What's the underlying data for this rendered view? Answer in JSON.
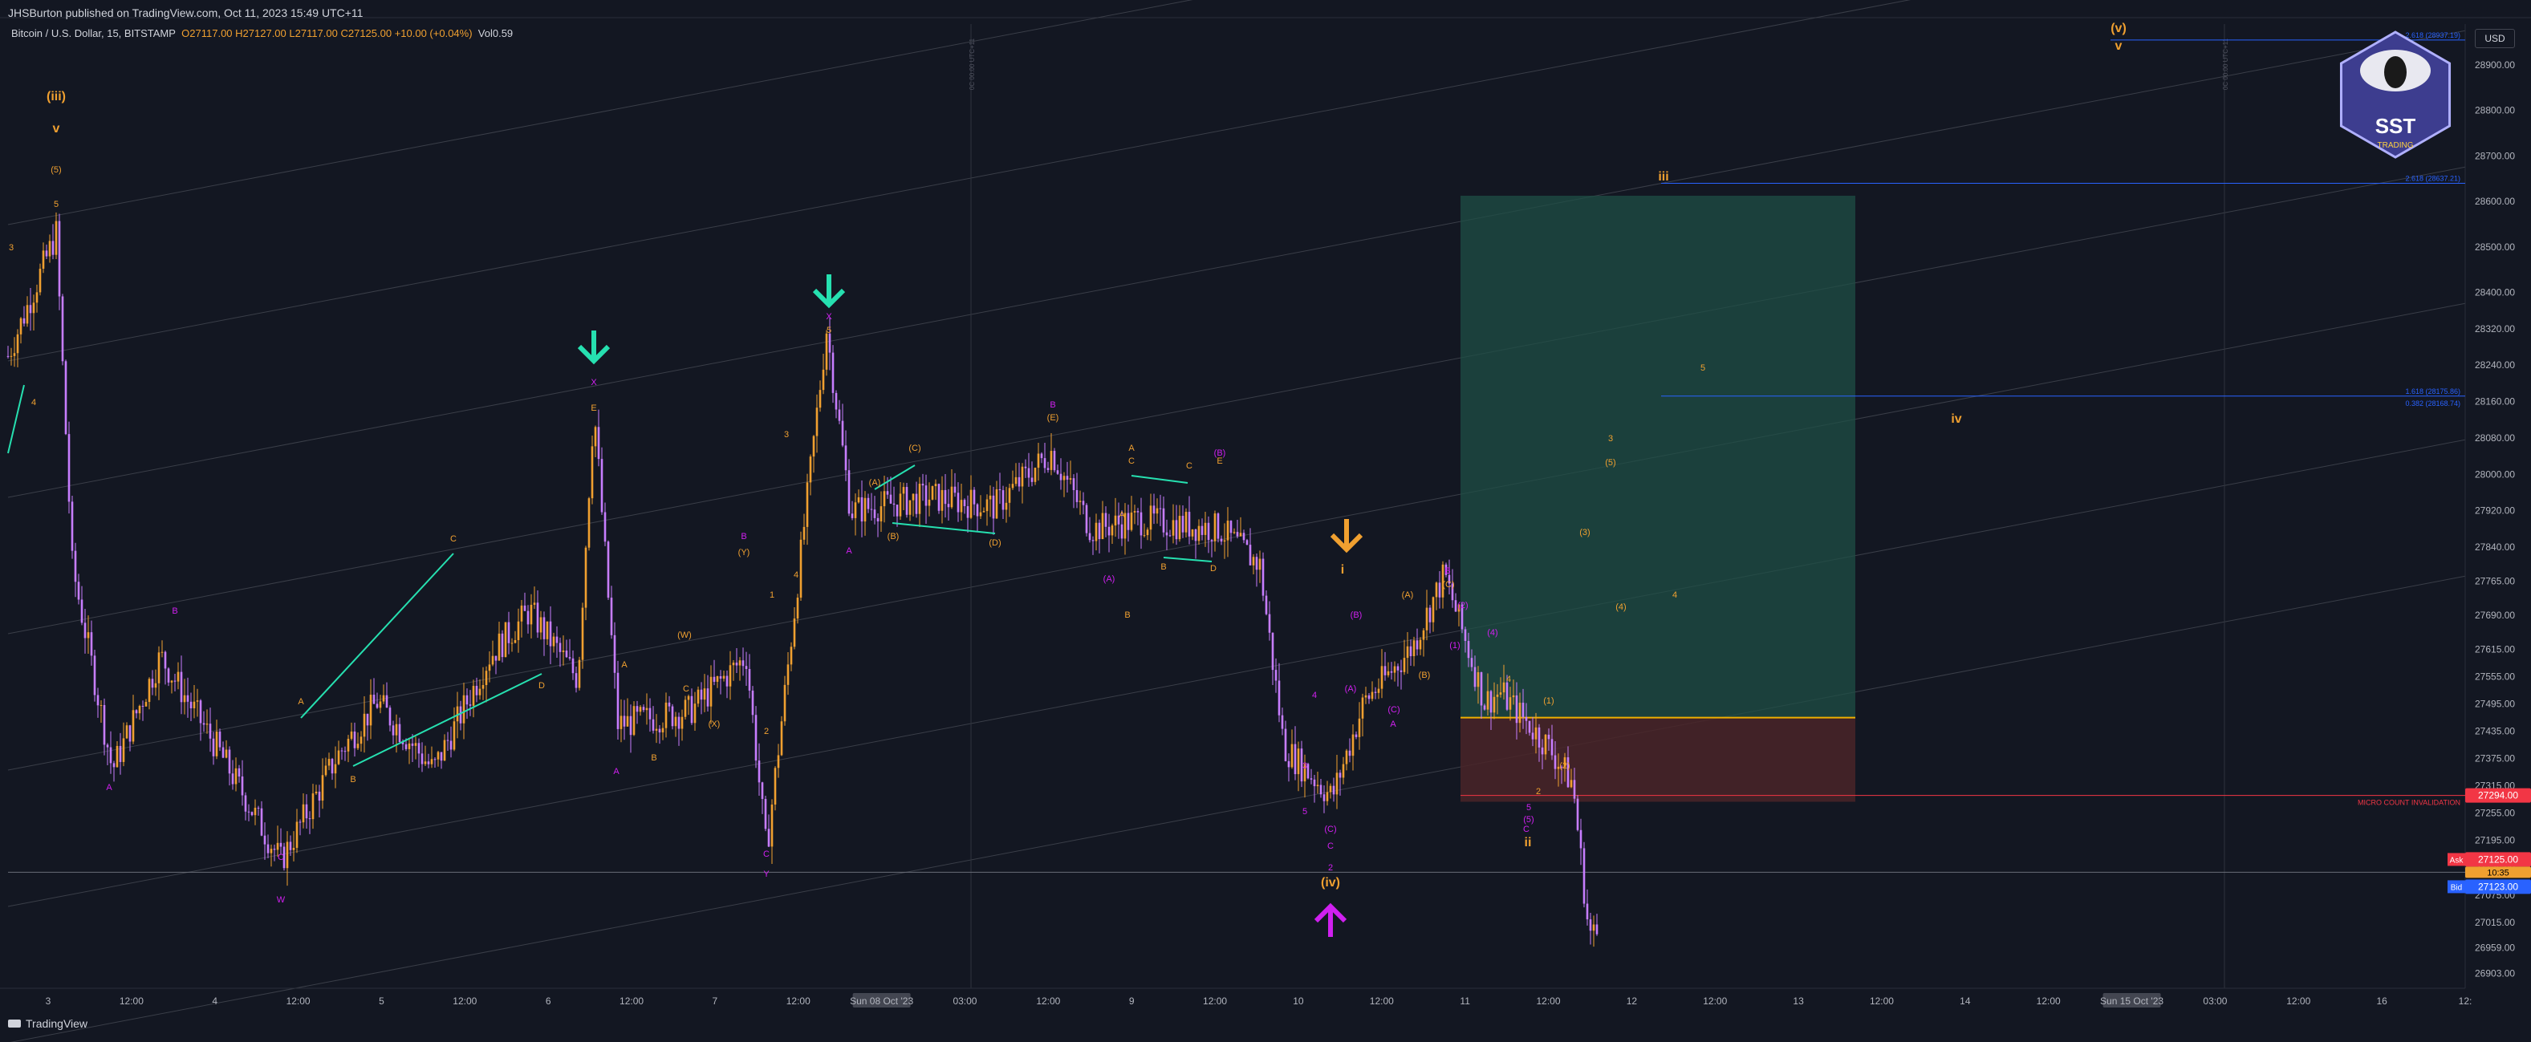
{
  "header": {
    "published": "JHSBurton published on TradingView.com, Oct 11, 2023 15:49 UTC+11",
    "symbol": "Bitcoin / U.S. Dollar, 15, BITSTAMP",
    "ohlc": "O27117.00 H27127.00 L27117.00 C27125.00 +10.00 (+0.04%)",
    "volume": "Vol0.59"
  },
  "footer": {
    "brand": "TradingView"
  },
  "currency": "USD",
  "colors": {
    "background": "#131722",
    "candle": "#c77dff",
    "orange": "#f0a030",
    "teal": "#26e0b0",
    "magenta": "#d020f0",
    "blue": "#2962ff",
    "red": "#f23645",
    "yellow_line": "#f0b000",
    "take_profit_zone": "#1f4f46",
    "stop_zone": "#4a2528"
  },
  "chart_data": {
    "type": "candlestick",
    "symbol": "BTC/USD",
    "timeframe": "15",
    "y_axis": {
      "ticks": [
        "28900.00",
        "28800.00",
        "28700.00",
        "28600.00",
        "28500.00",
        "28400.00",
        "28320.00",
        "28240.00",
        "28160.00",
        "28080.00",
        "28000.00",
        "27920.00",
        "27840.00",
        "27765.00",
        "27690.00",
        "27615.00",
        "27555.00",
        "27495.00",
        "27435.00",
        "27375.00",
        "27315.00",
        "27255.00",
        "27195.00",
        "27135.00",
        "27075.00",
        "27015.00",
        "26959.00",
        "26903.00"
      ]
    },
    "x_axis": {
      "ticks": [
        "3",
        "12:00",
        "4",
        "12:00",
        "5",
        "12:00",
        "6",
        "12:00",
        "7",
        "12:00",
        "Sun 08 Oct '23",
        "03:00",
        "12:00",
        "9",
        "12:00",
        "10",
        "12:00",
        "11",
        "12:00",
        "12",
        "12:00",
        "13",
        "12:00",
        "14",
        "12:00",
        "Sun 15 Oct '23",
        "03:00",
        "12:00",
        "16",
        "12:"
      ]
    },
    "price_labels": {
      "invalidation_value": "27294.00",
      "ask_value": "27125.00",
      "ask_label": "Ask",
      "timer": "10:35",
      "bid_value": "27123.00",
      "bid_label": "Bid"
    },
    "levels": {
      "invalidation_text": "MICRO COUNT INVALIDATION",
      "fib_top": "2.618 (28937.19)",
      "fib_mid": "2.618 (28637.21)",
      "fib_a": "1.618 (28175.86)",
      "fib_b": "0.382 (28168.74)"
    },
    "vertical_marker_labels": [
      "0C 00:00 UTC+11",
      "0C 00:00 UTC+11"
    ],
    "wave_labels": [
      {
        "text": "(iii)",
        "color": "orange"
      },
      {
        "text": "v",
        "color": "orange"
      },
      {
        "text": "(5)",
        "color": "orange"
      },
      {
        "text": "5",
        "color": "orange"
      },
      {
        "text": "3",
        "color": "orange"
      },
      {
        "text": "4",
        "color": "orange"
      },
      {
        "text": "A",
        "color": "magenta"
      },
      {
        "text": "B",
        "color": "magenta"
      },
      {
        "text": "A",
        "color": "orange"
      },
      {
        "text": "B",
        "color": "orange"
      },
      {
        "text": "C",
        "color": "orange"
      },
      {
        "text": "C",
        "color": "magenta"
      },
      {
        "text": "D",
        "color": "orange"
      },
      {
        "text": "W",
        "color": "magenta"
      },
      {
        "text": "X",
        "color": "magenta"
      },
      {
        "text": "E",
        "color": "orange"
      },
      {
        "text": "A",
        "color": "magenta"
      },
      {
        "text": "A",
        "color": "orange"
      },
      {
        "text": "B",
        "color": "orange"
      },
      {
        "text": "(W)",
        "color": "orange"
      },
      {
        "text": "C",
        "color": "orange"
      },
      {
        "text": "(X)",
        "color": "orange"
      },
      {
        "text": "B",
        "color": "magenta"
      },
      {
        "text": "(Y)",
        "color": "orange"
      },
      {
        "text": "C",
        "color": "magenta"
      },
      {
        "text": "Y",
        "color": "magenta"
      },
      {
        "text": "1",
        "color": "orange"
      },
      {
        "text": "2",
        "color": "orange"
      },
      {
        "text": "3",
        "color": "orange"
      },
      {
        "text": "4",
        "color": "orange"
      },
      {
        "text": "X",
        "color": "magenta"
      },
      {
        "text": "5",
        "color": "orange"
      },
      {
        "text": "A",
        "color": "magenta"
      },
      {
        "text": "(A)",
        "color": "orange"
      },
      {
        "text": "(B)",
        "color": "orange"
      },
      {
        "text": "(C)",
        "color": "orange"
      },
      {
        "text": "(D)",
        "color": "orange"
      },
      {
        "text": "B",
        "color": "magenta"
      },
      {
        "text": "(E)",
        "color": "orange"
      },
      {
        "text": "A",
        "color": "orange"
      },
      {
        "text": "C",
        "color": "orange"
      },
      {
        "text": "A",
        "color": "orange"
      },
      {
        "text": "B",
        "color": "orange"
      },
      {
        "text": "C",
        "color": "orange"
      },
      {
        "text": "D",
        "color": "orange"
      },
      {
        "text": "E",
        "color": "orange"
      },
      {
        "text": "(B)",
        "color": "magenta"
      },
      {
        "text": "(A)",
        "color": "magenta"
      },
      {
        "text": "B",
        "color": "orange"
      },
      {
        "text": "i",
        "color": "orange"
      },
      {
        "text": "(B)",
        "color": "magenta"
      },
      {
        "text": "(A)",
        "color": "magenta"
      },
      {
        "text": "(C)",
        "color": "magenta"
      },
      {
        "text": "A",
        "color": "magenta"
      },
      {
        "text": "4",
        "color": "magenta"
      },
      {
        "text": "3",
        "color": "magenta"
      },
      {
        "text": "5",
        "color": "magenta"
      },
      {
        "text": "(C)",
        "color": "magenta"
      },
      {
        "text": "C",
        "color": "magenta"
      },
      {
        "text": "2",
        "color": "magenta"
      },
      {
        "text": "(iv)",
        "color": "orange"
      },
      {
        "text": "(A)",
        "color": "orange"
      },
      {
        "text": "(B)",
        "color": "orange"
      },
      {
        "text": "(C)",
        "color": "orange"
      },
      {
        "text": "B",
        "color": "magenta"
      },
      {
        "text": "(1)",
        "color": "magenta"
      },
      {
        "text": "(2)",
        "color": "magenta"
      },
      {
        "text": "(4)",
        "color": "magenta"
      },
      {
        "text": "(1)",
        "color": "orange"
      },
      {
        "text": "(2)",
        "color": "orange"
      },
      {
        "text": "2",
        "color": "orange"
      },
      {
        "text": "4",
        "color": "orange"
      },
      {
        "text": "5",
        "color": "magenta"
      },
      {
        "text": "(5)",
        "color": "magenta"
      },
      {
        "text": "C",
        "color": "magenta"
      },
      {
        "text": "ii",
        "color": "orange"
      },
      {
        "text": "(3)",
        "color": "orange"
      },
      {
        "text": "(4)",
        "color": "orange"
      },
      {
        "text": "4",
        "color": "orange"
      },
      {
        "text": "(5)",
        "color": "orange"
      },
      {
        "text": "3",
        "color": "orange"
      },
      {
        "text": "5",
        "color": "orange"
      },
      {
        "text": "iii",
        "color": "orange"
      },
      {
        "text": "iv",
        "color": "orange"
      },
      {
        "text": "(v)",
        "color": "orange"
      },
      {
        "text": "v",
        "color": "orange"
      }
    ],
    "logo_text": "SST",
    "logo_subtext": "TRADING"
  }
}
